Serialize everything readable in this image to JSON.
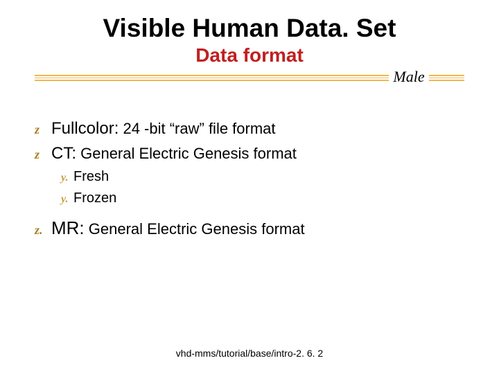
{
  "colors": {
    "accent_red": "#c02020",
    "rule_orange": "#f2b84a",
    "bullet_z": "#a88020",
    "bullet_y": "#c8a040",
    "text": "#000000",
    "background": "#ffffff"
  },
  "title": {
    "main": "Visible Human Data. Set",
    "sub": "Data format",
    "subtitle": "Male"
  },
  "bullets": [
    {
      "glyph": "z",
      "lead": " Fullcolor:",
      "rest": " 24 -bit “raw” file format"
    },
    {
      "glyph": "z",
      "lead": " CT:",
      "rest": " General Electric Genesis format"
    }
  ],
  "sub_bullets": [
    {
      "glyph": "y.",
      "text": "Fresh"
    },
    {
      "glyph": "y.",
      "text": "Frozen"
    }
  ],
  "mr": {
    "glyph": "z.",
    "lead": "MR:",
    "rest": " General Electric Genesis format"
  },
  "footer": "vhd-mms/tutorial/base/intro-2. 6. 2"
}
